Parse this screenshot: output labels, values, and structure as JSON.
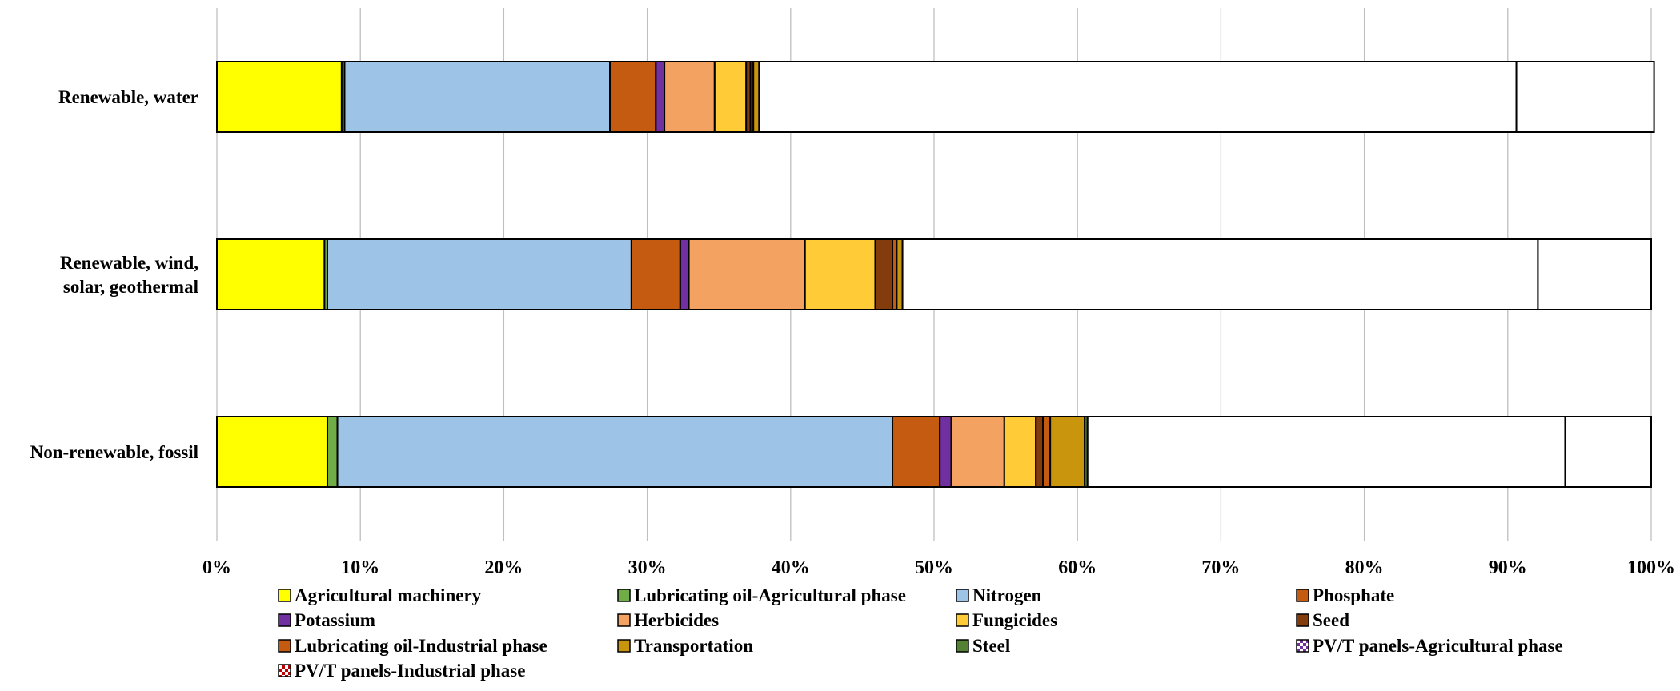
{
  "chart_data": {
    "type": "bar",
    "orientation": "horizontal",
    "stacked": "percent",
    "xlim": [
      0,
      100
    ],
    "x_ticks": [
      "0%",
      "10%",
      "20%",
      "30%",
      "40%",
      "50%",
      "60%",
      "70%",
      "80%",
      "90%",
      "100%"
    ],
    "grid": "vertical",
    "legend_position": "bottom",
    "categories": [
      "Renewable, water",
      "Renewable, wind, solar, geothermal",
      "Non-renewable, fossil"
    ],
    "category_lines": [
      [
        "Renewable, water"
      ],
      [
        "Renewable, wind,",
        "solar, geothermal"
      ],
      [
        "Non-renewable, fossil"
      ]
    ],
    "series": [
      {
        "name": "Agricultural machinery",
        "color": "#FFFF00",
        "values": [
          8.7,
          7.5,
          7.7
        ]
      },
      {
        "name": "Lubricating oil-Agricultural phase",
        "color": "#70AD47",
        "values": [
          0.2,
          0.2,
          0.7
        ]
      },
      {
        "name": "Nitrogen",
        "color": "#9DC3E6",
        "values": [
          18.5,
          21.2,
          38.7
        ]
      },
      {
        "name": "Phosphate",
        "color": "#C55A11",
        "values": [
          3.2,
          3.4,
          3.3
        ]
      },
      {
        "name": "Potassium",
        "color": "#7030A0",
        "values": [
          0.6,
          0.6,
          0.8
        ]
      },
      {
        "name": "Herbicides",
        "color": "#F4A261",
        "values": [
          3.5,
          8.1,
          3.7
        ]
      },
      {
        "name": "Fungicides",
        "color": "#FFCB37",
        "values": [
          2.2,
          4.9,
          2.2
        ]
      },
      {
        "name": "Seed",
        "color": "#843C0C",
        "values": [
          0.3,
          1.2,
          0.5
        ]
      },
      {
        "name": "Lubricating oil-Industrial phase",
        "color": "#C55A11",
        "values": [
          0.2,
          0.3,
          0.5
        ]
      },
      {
        "name": "Transportation",
        "color": "#C9950C",
        "values": [
          0.4,
          0.4,
          2.4
        ]
      },
      {
        "name": "Steel",
        "color": "#548235",
        "values": [
          0.0,
          0.0,
          0.2
        ]
      },
      {
        "name": "PV/T panels-Agricultural phase",
        "color": "#FFFFFF",
        "pattern": "purple-check",
        "values": [
          52.8,
          44.3,
          33.3
        ]
      },
      {
        "name": "PV/T panels-Industrial phase",
        "color": "#FFFFFF",
        "pattern": "red-check",
        "values": [
          9.6,
          7.9,
          6.0
        ]
      }
    ]
  }
}
